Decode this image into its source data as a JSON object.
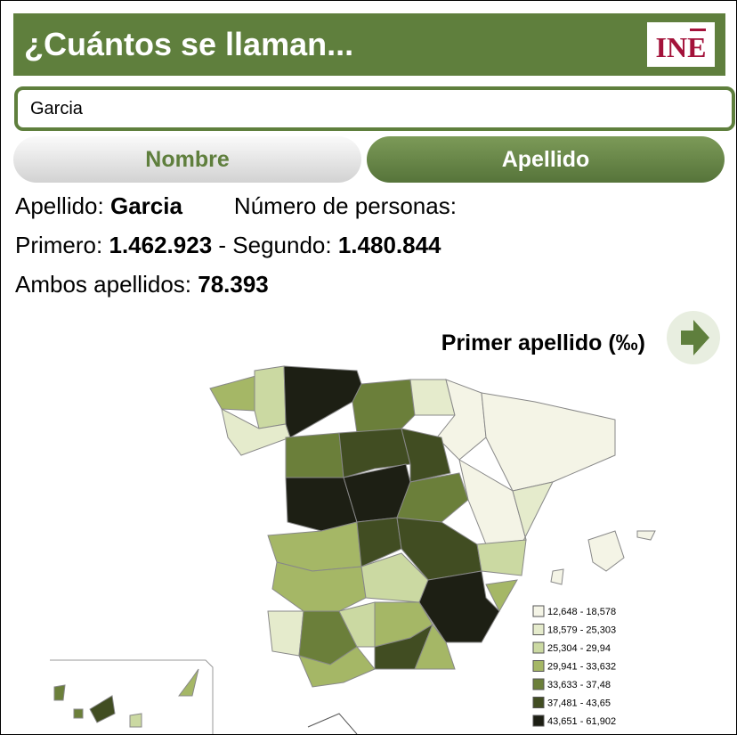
{
  "header": {
    "title": "¿Cuántos se llaman...",
    "logo": "INE"
  },
  "search": {
    "value": "Garcia"
  },
  "tabs": [
    "Nombre",
    "Apellido"
  ],
  "info": {
    "type_label": "Apellido:",
    "type_value": "Garcia",
    "count_label": "Número de personas:",
    "first_label": "Primero:",
    "first_value": "1.462.923",
    "second_label": "- Segundo:",
    "second_value": "1.480.844",
    "both_label": "Ambos apellidos:",
    "both_value": "78.393"
  },
  "map": {
    "title": "Primer apellido (‰)",
    "legend": [
      {
        "label": "12,648 - 18,578",
        "color": "#f4f4e6"
      },
      {
        "label": "18,579 - 25,303",
        "color": "#e5ebcc"
      },
      {
        "label": "25,304 - 29,94",
        "color": "#cbd9a2"
      },
      {
        "label": "29,941 - 33,632",
        "color": "#a5b766"
      },
      {
        "label": "33,633 - 37,48",
        "color": "#6b7f3a"
      },
      {
        "label": "37,481 - 43,65",
        "color": "#414d22"
      },
      {
        "label": "43,651 - 61,902",
        "color": "#1d1f14"
      }
    ]
  }
}
